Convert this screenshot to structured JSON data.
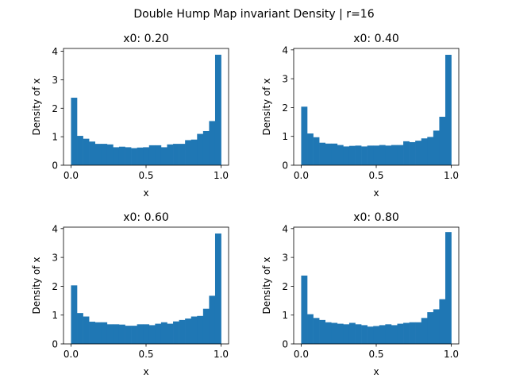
{
  "figure": {
    "suptitle": "Double Hump Map invariant Density | r=16",
    "bar_color": "#1f77b4"
  },
  "chart_data": [
    {
      "type": "bar",
      "title": "x0: 0.20",
      "xlabel": "x",
      "ylabel": "Density of x",
      "xlim": [
        -0.05,
        1.05
      ],
      "ylim": [
        0,
        4.1
      ],
      "xticks": [
        {
          "v": 0.0,
          "label": "0.0"
        },
        {
          "v": 0.5,
          "label": "0.5"
        },
        {
          "v": 1.0,
          "label": "1.0"
        }
      ],
      "yticks": [
        {
          "v": 0,
          "label": "0"
        },
        {
          "v": 1,
          "label": "1"
        },
        {
          "v": 2,
          "label": "2"
        },
        {
          "v": 3,
          "label": "3"
        },
        {
          "v": 4,
          "label": "4"
        }
      ],
      "bin_width": 0.04,
      "bin_start": 0.0,
      "values": [
        2.37,
        1.03,
        0.93,
        0.83,
        0.75,
        0.75,
        0.73,
        0.63,
        0.65,
        0.63,
        0.6,
        0.62,
        0.63,
        0.7,
        0.7,
        0.63,
        0.73,
        0.75,
        0.75,
        0.88,
        0.9,
        1.1,
        1.2,
        1.55,
        3.88
      ]
    },
    {
      "type": "bar",
      "title": "x0: 0.40",
      "xlabel": "x",
      "ylabel": "Density of x",
      "xlim": [
        -0.05,
        1.05
      ],
      "ylim": [
        0,
        4.05
      ],
      "xticks": [
        {
          "v": 0.0,
          "label": "0.0"
        },
        {
          "v": 0.5,
          "label": "0.5"
        },
        {
          "v": 1.0,
          "label": "1.0"
        }
      ],
      "yticks": [
        {
          "v": 0,
          "label": "0"
        },
        {
          "v": 1,
          "label": "1"
        },
        {
          "v": 2,
          "label": "2"
        },
        {
          "v": 3,
          "label": "3"
        },
        {
          "v": 4,
          "label": "4"
        }
      ],
      "bin_width": 0.04,
      "bin_start": 0.0,
      "values": [
        2.03,
        1.1,
        0.97,
        0.78,
        0.75,
        0.75,
        0.7,
        0.65,
        0.67,
        0.68,
        0.65,
        0.68,
        0.68,
        0.7,
        0.68,
        0.7,
        0.7,
        0.83,
        0.8,
        0.85,
        0.93,
        0.98,
        1.2,
        1.68,
        3.83
      ]
    },
    {
      "type": "bar",
      "title": "x0: 0.60",
      "xlabel": "x",
      "ylabel": "Density of x",
      "xlim": [
        -0.05,
        1.05
      ],
      "ylim": [
        0,
        4.05
      ],
      "xticks": [
        {
          "v": 0.0,
          "label": "0.0"
        },
        {
          "v": 0.5,
          "label": "0.5"
        },
        {
          "v": 1.0,
          "label": "1.0"
        }
      ],
      "yticks": [
        {
          "v": 0,
          "label": "0"
        },
        {
          "v": 1,
          "label": "1"
        },
        {
          "v": 2,
          "label": "2"
        },
        {
          "v": 3,
          "label": "3"
        },
        {
          "v": 4,
          "label": "4"
        }
      ],
      "bin_width": 0.04,
      "bin_start": 0.0,
      "values": [
        2.03,
        1.07,
        0.95,
        0.77,
        0.75,
        0.75,
        0.68,
        0.68,
        0.67,
        0.63,
        0.63,
        0.68,
        0.68,
        0.65,
        0.7,
        0.75,
        0.7,
        0.78,
        0.83,
        0.88,
        0.95,
        0.97,
        1.22,
        1.67,
        3.83
      ]
    },
    {
      "type": "bar",
      "title": "x0: 0.80",
      "xlabel": "x",
      "ylabel": "Density of x",
      "xlim": [
        -0.05,
        1.05
      ],
      "ylim": [
        0,
        4.05
      ],
      "xticks": [
        {
          "v": 0.0,
          "label": "0.0"
        },
        {
          "v": 0.5,
          "label": "0.5"
        },
        {
          "v": 1.0,
          "label": "1.0"
        }
      ],
      "yticks": [
        {
          "v": 0,
          "label": "0"
        },
        {
          "v": 1,
          "label": "1"
        },
        {
          "v": 2,
          "label": "2"
        },
        {
          "v": 3,
          "label": "3"
        },
        {
          "v": 4,
          "label": "4"
        }
      ],
      "bin_width": 0.04,
      "bin_start": 0.0,
      "values": [
        2.37,
        1.03,
        0.9,
        0.83,
        0.75,
        0.73,
        0.7,
        0.68,
        0.73,
        0.68,
        0.65,
        0.6,
        0.62,
        0.65,
        0.68,
        0.65,
        0.7,
        0.73,
        0.75,
        0.75,
        0.9,
        1.1,
        1.2,
        1.55,
        3.88
      ]
    }
  ]
}
